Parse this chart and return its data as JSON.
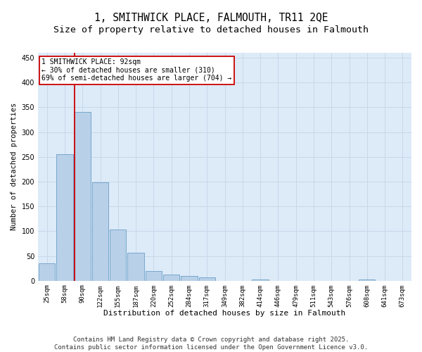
{
  "title": "1, SMITHWICK PLACE, FALMOUTH, TR11 2QE",
  "subtitle": "Size of property relative to detached houses in Falmouth",
  "xlabel": "Distribution of detached houses by size in Falmouth",
  "ylabel": "Number of detached properties",
  "bar_color": "#b8d0e8",
  "bar_edge_color": "#6aa0c8",
  "grid_color": "#c8d8ea",
  "bg_color": "#ddeaf8",
  "vline_x": 2,
  "vline_color": "#cc0000",
  "annotation_text": "1 SMITHWICK PLACE: 92sqm\n← 30% of detached houses are smaller (310)\n69% of semi-detached houses are larger (704) →",
  "annotation_box_color": "#cc0000",
  "bin_labels": [
    "25sqm",
    "58sqm",
    "90sqm",
    "122sqm",
    "155sqm",
    "187sqm",
    "220sqm",
    "252sqm",
    "284sqm",
    "317sqm",
    "349sqm",
    "382sqm",
    "414sqm",
    "446sqm",
    "479sqm",
    "511sqm",
    "543sqm",
    "576sqm",
    "608sqm",
    "641sqm",
    "673sqm"
  ],
  "values": [
    35,
    255,
    340,
    198,
    103,
    57,
    20,
    12,
    10,
    6,
    0,
    0,
    3,
    0,
    0,
    0,
    0,
    0,
    3,
    0,
    0
  ],
  "ylim": [
    0,
    460
  ],
  "yticks": [
    0,
    50,
    100,
    150,
    200,
    250,
    300,
    350,
    400,
    450
  ],
  "footer": "Contains HM Land Registry data © Crown copyright and database right 2025.\nContains public sector information licensed under the Open Government Licence v3.0.",
  "title_fontsize": 10.5,
  "subtitle_fontsize": 9.5,
  "footer_fontsize": 6.5,
  "xlabel_fontsize": 8,
  "ylabel_fontsize": 7.5,
  "annotation_fontsize": 7,
  "tick_fontsize": 6.5
}
